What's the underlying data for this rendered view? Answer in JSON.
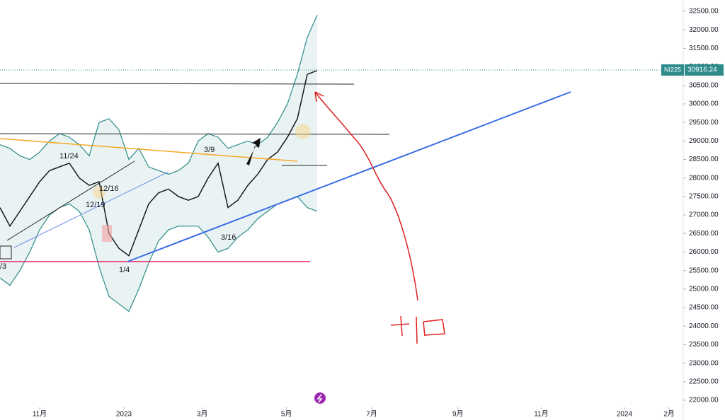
{
  "chart_data": {
    "type": "line",
    "symbol": "NI225",
    "last_price": 30916.24,
    "series": [
      {
        "color": "#1a1a1a",
        "values": [
          27200,
          26700,
          27100,
          27500,
          27900,
          28200,
          28300,
          28400,
          28000,
          27800,
          27900,
          26500,
          26100,
          25900,
          26600,
          27300,
          27600,
          27700,
          27500,
          27400,
          27500,
          28000,
          28400,
          27200,
          27400,
          27800,
          28100,
          28500,
          28700,
          29100,
          29600,
          30800,
          30900
        ]
      },
      {
        "color": "#2e8b8b",
        "values": [
          28900,
          28800,
          28600,
          28500,
          28700,
          29000,
          29200,
          29100,
          28900,
          28600,
          29500,
          29600,
          29300,
          28500,
          28800,
          28300,
          28200,
          28100,
          28200,
          28400,
          29000,
          29200,
          29100,
          28800,
          28900,
          29000,
          28900,
          29100,
          29500,
          30000,
          30800,
          31800,
          32400
        ]
      },
      {
        "color": "#2e8b8b",
        "values": [
          25300,
          25100,
          25500,
          26000,
          26600,
          27000,
          27200,
          27300,
          27100,
          26600,
          25600,
          24800,
          24600,
          24400,
          25000,
          25700,
          26300,
          26600,
          26700,
          26700,
          26700,
          26400,
          26000,
          26100,
          26400,
          26600,
          26900,
          27100,
          27300,
          27400,
          27500,
          27200,
          27100
        ]
      }
    ],
    "annotations": [
      "11/24",
      "12/16",
      "12/19",
      "3/9",
      "3/16",
      "1/4",
      "/3"
    ],
    "xlim": [
      0,
      69
    ],
    "xticks": [
      {
        "value": 4,
        "label": "11月"
      },
      {
        "value": 12.5,
        "label": "2023"
      },
      {
        "value": 20.4,
        "label": "3月"
      },
      {
        "value": 28.9,
        "label": "5月"
      },
      {
        "value": 37.5,
        "label": "7月"
      },
      {
        "value": 46.2,
        "label": "9月"
      },
      {
        "value": 54.6,
        "label": "11月"
      },
      {
        "value": 63,
        "label": "2024"
      },
      {
        "value": 67.5,
        "label": "2月"
      }
    ],
    "ylim": [
      22000,
      32500
    ],
    "yticks": [
      {
        "value": 22000,
        "label": "22000.00"
      },
      {
        "value": 22500,
        "label": "22500.00"
      },
      {
        "value": 23000,
        "label": "23000.00"
      },
      {
        "value": 23500,
        "label": "23500.00"
      },
      {
        "value": 24000,
        "label": "24000.00"
      },
      {
        "value": 24500,
        "label": "24500.00"
      },
      {
        "value": 25000,
        "label": "25000.00"
      },
      {
        "value": 25500,
        "label": "25500.00"
      },
      {
        "value": 26000,
        "label": "26000.00"
      },
      {
        "value": 26500,
        "label": "26500.00"
      },
      {
        "value": 27000,
        "label": "27000.00"
      },
      {
        "value": 27500,
        "label": "27500.00"
      },
      {
        "value": 28000,
        "label": "28000.00"
      },
      {
        "value": 28500,
        "label": "28500.00"
      },
      {
        "value": 29000,
        "label": "29000.00"
      },
      {
        "value": 29500,
        "label": "29500.00"
      },
      {
        "value": 30000,
        "label": "30000.00"
      },
      {
        "value": 30500,
        "label": "30500.00"
      },
      {
        "value": 31000,
        "label": "31000.00"
      },
      {
        "value": 31500,
        "label": "31500.00"
      },
      {
        "value": 32000,
        "label": "32000.00"
      },
      {
        "value": 32500,
        "label": "32500.00"
      }
    ]
  }
}
